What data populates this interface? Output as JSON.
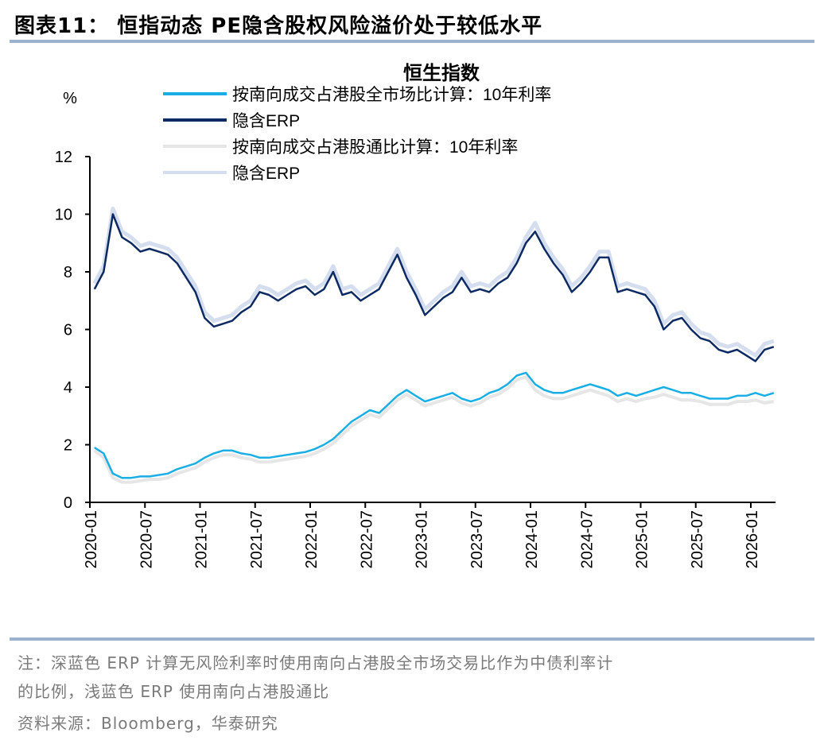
{
  "header": {
    "title": "图表11：  恒指动态 PE隐含股权风险溢价处于较低水平"
  },
  "footer": {
    "note_line1": "注：深蓝色 ERP 计算无风险利率时使用南向占港股全市场交易比作为中债利率计",
    "note_line2": "的比例，浅蓝色 ERP 使用南向占港股通比",
    "source": "资料来源：Bloomberg，华泰研究"
  },
  "chart_data": {
    "type": "line",
    "title": "恒生指数",
    "ylabel": "%",
    "xlabel": "",
    "ylim": [
      0,
      12
    ],
    "yticks": [
      0,
      2,
      4,
      6,
      8,
      10,
      12
    ],
    "xticks": [
      "2020-01",
      "2020-07",
      "2021-01",
      "2021-07",
      "2022-01",
      "2022-07",
      "2023-01",
      "2023-07",
      "2024-01",
      "2024-07",
      "2025-01",
      "2025-07",
      "2026-01"
    ],
    "xlim": [
      "2020-01",
      "2026-03"
    ],
    "grid": false,
    "legend": "top",
    "x": [
      "2020-01",
      "2020-02",
      "2020-03",
      "2020-04",
      "2020-05",
      "2020-06",
      "2020-07",
      "2020-08",
      "2020-09",
      "2020-10",
      "2020-11",
      "2020-12",
      "2021-01",
      "2021-02",
      "2021-03",
      "2021-04",
      "2021-05",
      "2021-06",
      "2021-07",
      "2021-08",
      "2021-09",
      "2021-10",
      "2021-11",
      "2021-12",
      "2022-01",
      "2022-02",
      "2022-03",
      "2022-04",
      "2022-05",
      "2022-06",
      "2022-07",
      "2022-08",
      "2022-09",
      "2022-10",
      "2022-11",
      "2022-12",
      "2023-01",
      "2023-02",
      "2023-03",
      "2023-04",
      "2023-05",
      "2023-06",
      "2023-07",
      "2023-08",
      "2023-09",
      "2023-10",
      "2023-11",
      "2023-12",
      "2024-01",
      "2024-02",
      "2024-03",
      "2024-04",
      "2024-05",
      "2024-06",
      "2024-07",
      "2024-08",
      "2024-09",
      "2024-10",
      "2024-11",
      "2024-12",
      "2025-01",
      "2025-02",
      "2025-03",
      "2025-04",
      "2025-05",
      "2025-06",
      "2025-07",
      "2025-08",
      "2025-09",
      "2025-10",
      "2025-11",
      "2025-12",
      "2026-01",
      "2026-02",
      "2026-03"
    ],
    "series": [
      {
        "name": "按南向成交占港股通比计算：10年利率",
        "color": "#e6e6e6",
        "values": [
          1.8,
          1.55,
          0.85,
          0.7,
          0.7,
          0.75,
          0.8,
          0.8,
          0.85,
          1.0,
          1.1,
          1.2,
          1.4,
          1.55,
          1.65,
          1.65,
          1.55,
          1.5,
          1.4,
          1.4,
          1.45,
          1.5,
          1.55,
          1.6,
          1.7,
          1.85,
          2.05,
          2.35,
          2.65,
          2.85,
          3.05,
          2.95,
          3.25,
          3.55,
          3.75,
          3.55,
          3.35,
          3.45,
          3.55,
          3.65,
          3.45,
          3.35,
          3.45,
          3.65,
          3.75,
          3.95,
          4.25,
          4.35,
          3.9,
          3.7,
          3.6,
          3.6,
          3.7,
          3.8,
          3.9,
          3.8,
          3.7,
          3.5,
          3.6,
          3.5,
          3.6,
          3.65,
          3.75,
          3.65,
          3.55,
          3.55,
          3.5,
          3.4,
          3.4,
          3.4,
          3.5,
          3.5,
          3.55,
          3.45,
          3.5
        ]
      },
      {
        "name": "隐含ERP",
        "color": "#d5deef",
        "values": [
          7.6,
          8.2,
          10.2,
          9.4,
          9.2,
          8.9,
          9.0,
          8.9,
          8.8,
          8.5,
          8.0,
          7.5,
          6.6,
          6.3,
          6.4,
          6.5,
          6.8,
          7.0,
          7.5,
          7.4,
          7.2,
          7.4,
          7.6,
          7.7,
          7.4,
          7.6,
          8.2,
          7.4,
          7.5,
          7.2,
          7.4,
          7.6,
          8.2,
          8.8,
          8.0,
          7.4,
          6.7,
          7.0,
          7.3,
          7.5,
          8.0,
          7.5,
          7.6,
          7.5,
          7.8,
          8.0,
          8.5,
          9.2,
          9.7,
          9.0,
          8.5,
          8.1,
          7.5,
          7.8,
          8.2,
          8.7,
          8.7,
          7.5,
          7.6,
          7.5,
          7.4,
          7.0,
          6.2,
          6.5,
          6.6,
          6.2,
          5.9,
          5.8,
          5.5,
          5.4,
          5.5,
          5.3,
          5.1,
          5.5,
          5.6
        ]
      },
      {
        "name": "按南向成交占港股全市场比计算：10年利率",
        "color": "#1aaee5",
        "values": [
          1.9,
          1.7,
          1.0,
          0.85,
          0.85,
          0.9,
          0.9,
          0.95,
          1.0,
          1.15,
          1.25,
          1.35,
          1.55,
          1.7,
          1.8,
          1.8,
          1.7,
          1.65,
          1.55,
          1.55,
          1.6,
          1.65,
          1.7,
          1.75,
          1.85,
          2.0,
          2.2,
          2.5,
          2.8,
          3.0,
          3.2,
          3.1,
          3.4,
          3.7,
          3.9,
          3.7,
          3.5,
          3.6,
          3.7,
          3.8,
          3.6,
          3.5,
          3.6,
          3.8,
          3.9,
          4.1,
          4.4,
          4.5,
          4.1,
          3.9,
          3.8,
          3.8,
          3.9,
          4.0,
          4.1,
          4.0,
          3.9,
          3.7,
          3.8,
          3.7,
          3.8,
          3.9,
          4.0,
          3.9,
          3.8,
          3.8,
          3.7,
          3.6,
          3.6,
          3.6,
          3.7,
          3.7,
          3.8,
          3.7,
          3.8
        ]
      },
      {
        "name": "隐含ERP",
        "color": "#0d2a63",
        "values": [
          7.4,
          8.0,
          10.0,
          9.2,
          9.0,
          8.7,
          8.8,
          8.7,
          8.6,
          8.3,
          7.8,
          7.3,
          6.4,
          6.1,
          6.2,
          6.3,
          6.6,
          6.8,
          7.3,
          7.2,
          7.0,
          7.2,
          7.4,
          7.5,
          7.2,
          7.4,
          8.0,
          7.2,
          7.3,
          7.0,
          7.2,
          7.4,
          8.0,
          8.6,
          7.8,
          7.2,
          6.5,
          6.8,
          7.1,
          7.3,
          7.8,
          7.3,
          7.4,
          7.3,
          7.6,
          7.8,
          8.3,
          9.0,
          9.4,
          8.8,
          8.3,
          7.9,
          7.3,
          7.6,
          8.0,
          8.5,
          8.5,
          7.3,
          7.4,
          7.3,
          7.2,
          6.8,
          6.0,
          6.3,
          6.4,
          6.0,
          5.7,
          5.6,
          5.3,
          5.2,
          5.3,
          5.1,
          4.9,
          5.3,
          5.4
        ]
      }
    ],
    "legend_order": [
      2,
      3,
      0,
      1
    ]
  }
}
